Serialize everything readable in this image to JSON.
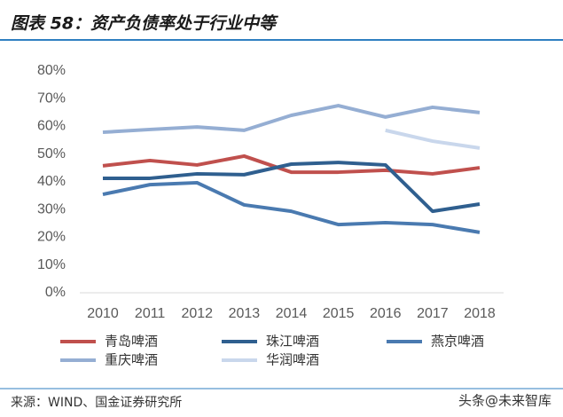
{
  "chart_data": {
    "type": "line",
    "title": "图表 58：资产负债率处于行业中等",
    "source": "来源：WIND、国金证券研究所",
    "x": [
      "2010",
      "2011",
      "2012",
      "2013",
      "2014",
      "2015",
      "2016",
      "2017",
      "2018"
    ],
    "series": [
      {
        "name": "青岛啤酒",
        "color": "#c0504d",
        "values": [
          45.8,
          47.7,
          46.1,
          49.3,
          43.5,
          43.5,
          44.2,
          42.9,
          45.1
        ]
      },
      {
        "name": "珠江啤酒",
        "color": "#2f5f8f",
        "values": [
          41.3,
          41.3,
          42.9,
          42.6,
          46.4,
          47.0,
          46.1,
          29.4,
          32.0
        ]
      },
      {
        "name": "燕京啤酒",
        "color": "#4a7ab0",
        "values": [
          35.5,
          39.0,
          39.7,
          31.7,
          29.4,
          24.6,
          25.3,
          24.6,
          21.8
        ]
      },
      {
        "name": "重庆啤酒",
        "color": "#95aed3",
        "values": [
          57.9,
          58.9,
          59.8,
          58.6,
          64.0,
          67.5,
          63.4,
          66.9,
          65.0
        ]
      },
      {
        "name": "华润啤酒",
        "color": "#c9d7ec",
        "values": [
          null,
          null,
          null,
          null,
          null,
          null,
          58.6,
          54.7,
          52.2
        ]
      }
    ],
    "ylim": [
      0,
      80
    ],
    "yticks": [
      {
        "value": 0,
        "label": "0%"
      },
      {
        "value": 10,
        "label": "10%"
      },
      {
        "value": 20,
        "label": "20%"
      },
      {
        "value": 30,
        "label": "30%"
      },
      {
        "value": 40,
        "label": "40%"
      },
      {
        "value": 50,
        "label": "50%"
      },
      {
        "value": 60,
        "label": "60%"
      },
      {
        "value": 70,
        "label": "70%"
      },
      {
        "value": 80,
        "label": "80%"
      }
    ],
    "grid": false
  },
  "watermark": "头条@未来智库"
}
